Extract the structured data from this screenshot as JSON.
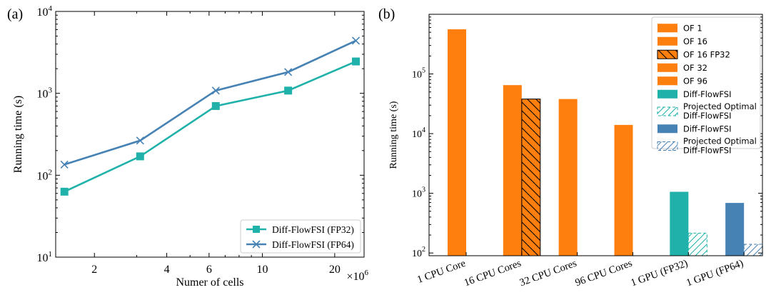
{
  "chart_data": [
    {
      "type": "line",
      "panel_label": "(a)",
      "xscale": "log",
      "yscale": "log",
      "xlabel": "Numer of cells",
      "x_multiplier": "×10",
      "x_multiplier_exp": "6",
      "ylabel": "Running time (s)",
      "xlim": [
        1.38,
        26.5
      ],
      "ylim": [
        10,
        10000
      ],
      "xticks": [
        {
          "value": 2,
          "label": "2"
        },
        {
          "value": 4,
          "label": "4"
        },
        {
          "value": 6,
          "label": "6"
        },
        {
          "value": 10,
          "label": "10"
        },
        {
          "value": 20,
          "label": "20"
        }
      ],
      "yticks": [
        {
          "value": 10,
          "base": "10",
          "exp": "1"
        },
        {
          "value": 100,
          "base": "10",
          "exp": "2"
        },
        {
          "value": 1000,
          "base": "10",
          "exp": "3"
        },
        {
          "value": 10000,
          "base": "10",
          "exp": "4"
        }
      ],
      "legend_position": "lower-right",
      "series": [
        {
          "name": "Diff-FlowFSI (FP32)",
          "color": "#20b2aa",
          "marker": "square",
          "x": [
            1.5,
            3.1,
            6.4,
            12.8,
            24.5
          ],
          "y": [
            63,
            170,
            700,
            1080,
            2450
          ]
        },
        {
          "name": "Diff-FlowFSI (FP64)",
          "color": "#4682b4",
          "marker": "x",
          "x": [
            1.5,
            3.1,
            6.4,
            12.8,
            24.5
          ],
          "y": [
            135,
            265,
            1080,
            1820,
            4400
          ]
        }
      ]
    },
    {
      "type": "bar",
      "panel_label": "(b)",
      "yscale": "log",
      "ylabel": "Running time (s)",
      "ylim": [
        90,
        1000000
      ],
      "yticks": [
        {
          "value": 100,
          "base": "10",
          "exp": "2"
        },
        {
          "value": 1000,
          "base": "10",
          "exp": "3"
        },
        {
          "value": 10000,
          "base": "10",
          "exp": "4"
        },
        {
          "value": 100000,
          "base": "10",
          "exp": "5"
        }
      ],
      "categories": [
        "1 CPU Core",
        "16 CPU Cores",
        "32 CPU Cores",
        "96 CPU Cores",
        "1 GPU (FP32)",
        "1 GPU (FP64)"
      ],
      "bars": [
        {
          "name": "OF 1",
          "category": 0,
          "slot": 0,
          "value": 560000,
          "color": "#ff7f0e",
          "style": "solid"
        },
        {
          "name": "OF 16",
          "category": 1,
          "slot": 0,
          "value": 65000,
          "color": "#ff7f0e",
          "style": "solid"
        },
        {
          "name": "OF 16 FP32",
          "category": 1,
          "slot": 1,
          "value": 38000,
          "color": "#ff7f0e",
          "style": "hatch-back"
        },
        {
          "name": "OF 32",
          "category": 2,
          "slot": 0,
          "value": 38000,
          "color": "#ff7f0e",
          "style": "solid"
        },
        {
          "name": "OF 96",
          "category": 3,
          "slot": 0,
          "value": 14000,
          "color": "#ff7f0e",
          "style": "solid"
        },
        {
          "name": "Diff-FlowFSI",
          "category": 4,
          "slot": 0,
          "value": 1060,
          "color": "#20b2aa",
          "style": "solid"
        },
        {
          "name": "Projected Optimal Diff-FlowFSI",
          "category": 4,
          "slot": 1,
          "value": 215,
          "color": "#20b2aa",
          "style": "hatch-fwd"
        },
        {
          "name": "Diff-FlowFSI",
          "category": 5,
          "slot": 0,
          "value": 690,
          "color": "#4682b4",
          "style": "solid"
        },
        {
          "name": "Projected Optimal Diff-FlowFSI",
          "category": 5,
          "slot": 1,
          "value": 140,
          "color": "#4682b4",
          "style": "hatch-fwd"
        }
      ],
      "legend_position": "top-right",
      "legend": [
        {
          "lines": [
            "OF 1"
          ],
          "color": "#ff7f0e",
          "style": "solid"
        },
        {
          "lines": [
            "OF 16"
          ],
          "color": "#ff7f0e",
          "style": "solid"
        },
        {
          "lines": [
            "OF 16 FP32"
          ],
          "color": "#ff7f0e",
          "style": "hatch-back"
        },
        {
          "lines": [
            "OF 32"
          ],
          "color": "#ff7f0e",
          "style": "solid"
        },
        {
          "lines": [
            "OF 96"
          ],
          "color": "#ff7f0e",
          "style": "solid"
        },
        {
          "lines": [
            "Diff-FlowFSI"
          ],
          "color": "#20b2aa",
          "style": "solid"
        },
        {
          "lines": [
            "Projected Optimal",
            "Diff-FlowFSI"
          ],
          "color": "#20b2aa",
          "style": "hatch-fwd"
        },
        {
          "lines": [
            "Diff-FlowFSI"
          ],
          "color": "#4682b4",
          "style": "solid"
        },
        {
          "lines": [
            "Projected Optimal",
            "Diff-FlowFSI"
          ],
          "color": "#4682b4",
          "style": "hatch-fwd"
        }
      ]
    }
  ]
}
